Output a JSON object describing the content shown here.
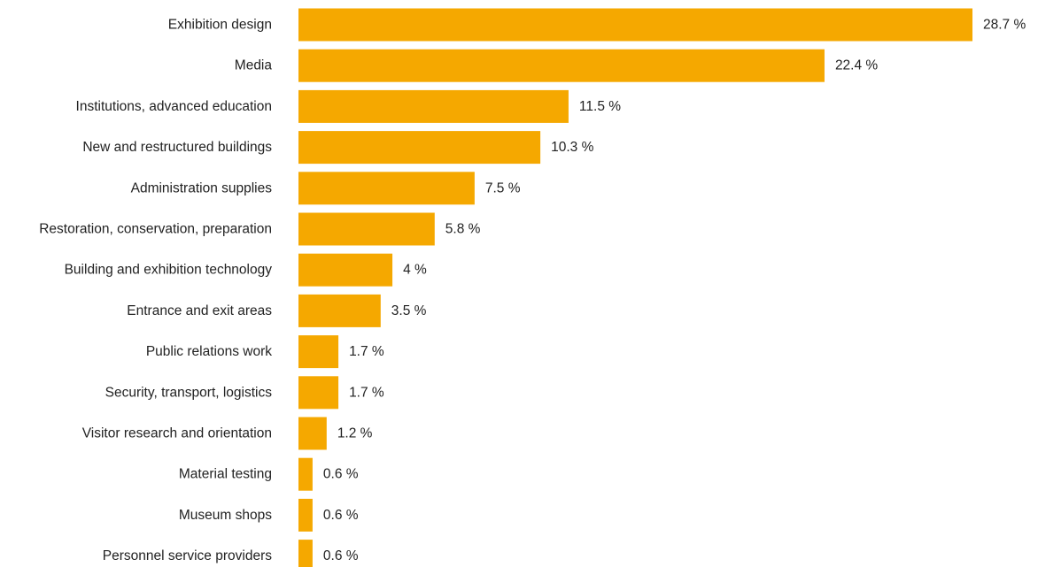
{
  "chart_data": {
    "type": "bar",
    "orientation": "horizontal",
    "title": "",
    "xlabel": "",
    "ylabel": "",
    "grid": false,
    "legend": "none",
    "bar_color": "#F5A800",
    "value_suffix": " %",
    "xlim": [
      0,
      28.7
    ],
    "categories": [
      "Exhibition design",
      "Media",
      "Institutions, advanced education",
      "New and restructured buildings",
      "Administration supplies",
      "Restoration, conservation, preparation",
      "Building and exhibition technology",
      "Entrance and exit areas",
      "Public relations work",
      "Security, transport, logistics",
      "Visitor research and orientation",
      "Material testing",
      "Museum shops",
      "Personnel service providers"
    ],
    "values": [
      28.7,
      22.4,
      11.5,
      10.3,
      7.5,
      5.8,
      4,
      3.5,
      1.7,
      1.7,
      1.2,
      0.6,
      0.6,
      0.6
    ],
    "value_labels": [
      "28.7 %",
      "22.4 %",
      "11.5 %",
      "10.3 %",
      "7.5 %",
      "5.8 %",
      "4 %",
      "3.5 %",
      "1.7 %",
      "1.7 %",
      "1.2 %",
      "0.6 %",
      "0.6 %",
      "0.6 %"
    ]
  }
}
